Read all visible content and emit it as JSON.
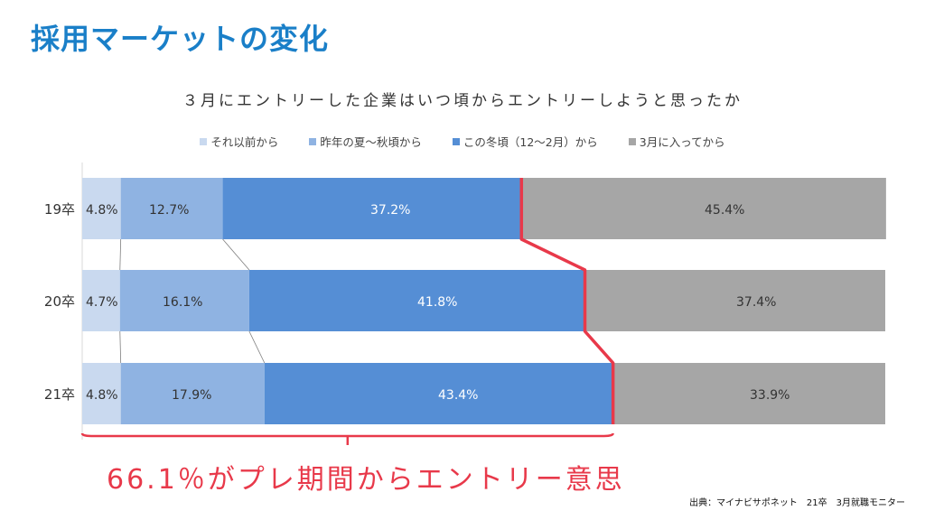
{
  "page": {
    "title": "採用マーケットの変化"
  },
  "chart_data": {
    "type": "bar",
    "orientation": "horizontal",
    "stacked": true,
    "title": "３月にエントリーした企業はいつ頃からエントリーしようと思ったか",
    "categories": [
      "19卒",
      "20卒",
      "21卒"
    ],
    "series": [
      {
        "name": "それ以前から",
        "color": "#c9d9ef",
        "values": [
          4.8,
          4.7,
          4.8
        ]
      },
      {
        "name": "昨年の夏～秋頃から",
        "color": "#8fb3e2",
        "values": [
          12.7,
          16.1,
          17.9
        ]
      },
      {
        "name": "この冬頃（12～2月）から",
        "color": "#558ed5",
        "values": [
          37.2,
          41.8,
          43.4
        ]
      },
      {
        "name": "3月に入ってから",
        "color": "#a6a6a6",
        "values": [
          45.4,
          37.4,
          33.9
        ]
      }
    ],
    "labels": [
      [
        "4.8%",
        "12.7%",
        "37.2%",
        "45.4%"
      ],
      [
        "4.7%",
        "16.1%",
        "41.8%",
        "37.4%"
      ],
      [
        "4.8%",
        "17.9%",
        "43.4%",
        "33.9%"
      ]
    ],
    "xlim": [
      0,
      100
    ],
    "legend_position": "top",
    "grid": false
  },
  "annotation": {
    "text": "66.1％がプレ期間からエントリー意思",
    "color": "#e8394a"
  },
  "source": "出典：マイナビサポネット　21卒　3月就職モニター"
}
